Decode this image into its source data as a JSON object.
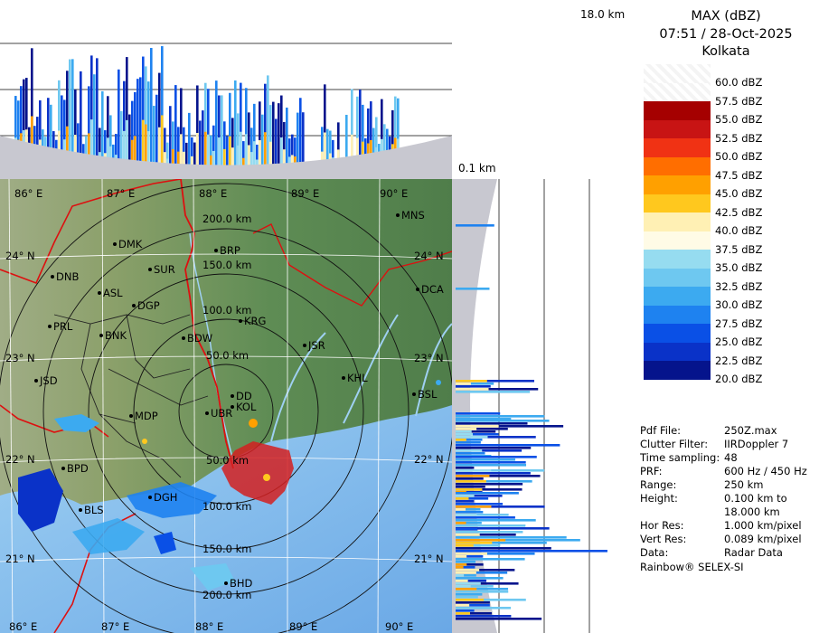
{
  "header": {
    "product": "MAX (dBZ)",
    "datetime": "07:51 / 28-Oct-2025",
    "station": "Kolkata"
  },
  "height_labels": {
    "top": "18.0 km",
    "bottom": "0.1 km"
  },
  "legend": {
    "entries": [
      {
        "label": "60.0 dBZ",
        "color": "#f2f2f2"
      },
      {
        "label": "57.5 dBZ",
        "color": "#ffffff"
      },
      {
        "label": "55.0 dBZ",
        "color": "#a50000"
      },
      {
        "label": "52.5 dBZ",
        "color": "#c81414"
      },
      {
        "label": "50.0 dBZ",
        "color": "#f03214"
      },
      {
        "label": "47.5 dBZ",
        "color": "#ff6e00"
      },
      {
        "label": "45.0 dBZ",
        "color": "#ffa000"
      },
      {
        "label": "42.5 dBZ",
        "color": "#ffc81e"
      },
      {
        "label": "40.0 dBZ",
        "color": "#fff0b4"
      },
      {
        "label": "37.5 dBZ",
        "color": "#fffbe6"
      },
      {
        "label": "35.0 dBZ",
        "color": "#96dcf0"
      },
      {
        "label": "32.5 dBZ",
        "color": "#6ec8f0"
      },
      {
        "label": "30.0 dBZ",
        "color": "#3caaf0"
      },
      {
        "label": "27.5 dBZ",
        "color": "#1e82f0"
      },
      {
        "label": "25.0 dBZ",
        "color": "#0a50e6"
      },
      {
        "label": "22.5 dBZ",
        "color": "#0a32c8"
      },
      {
        "label": "20.0 dBZ",
        "color": "#05148c"
      }
    ]
  },
  "info": [
    {
      "key": "Pdf File:",
      "value": "250Z.max"
    },
    {
      "key": "Clutter Filter:",
      "value": "IIRDoppler 7"
    },
    {
      "key": "Time sampling:",
      "value": "48"
    },
    {
      "key": "PRF:",
      "value": "600 Hz / 450 Hz"
    },
    {
      "key": "Range:",
      "value": "250 km"
    },
    {
      "key": "Height:",
      "value": "0.100 km to"
    },
    {
      "key": "",
      "value": "18.000 km"
    },
    {
      "key": "Hor Res:",
      "value": "1.000 km/pixel"
    },
    {
      "key": "Vert Res:",
      "value": "0.089 km/pixel"
    },
    {
      "key": "Data:",
      "value": "Radar Data"
    }
  ],
  "footer": "Rainbow® SELEX-SI",
  "map": {
    "lon_labels_top": [
      "86° E",
      "87° E",
      "88° E",
      "89° E",
      "90° E"
    ],
    "lon_labels_bottom": [
      "86° E",
      "87° E",
      "88° E",
      "89° E",
      "90° E"
    ],
    "lat_labels": [
      "24° N",
      "23° N",
      "22° N",
      "21° N"
    ],
    "range_rings": [
      "50.0 km",
      "100.0 km",
      "150.0 km",
      "200.0 km"
    ],
    "range_rings_south": [
      "50.0 km",
      "100.0 km",
      "150.0 km",
      "200.0 km"
    ],
    "places": [
      "MNS",
      "DMK",
      "BRP",
      "DNB",
      "SUR",
      "ASL",
      "DGP",
      "DCA",
      "KRG",
      "PRL",
      "BNK",
      "BDW",
      "JSR",
      "KHL",
      "JSD",
      "BSL",
      "DD",
      "KOL",
      "MDP",
      "UBR",
      "BPD",
      "DGH",
      "BLS",
      "BHD"
    ]
  }
}
